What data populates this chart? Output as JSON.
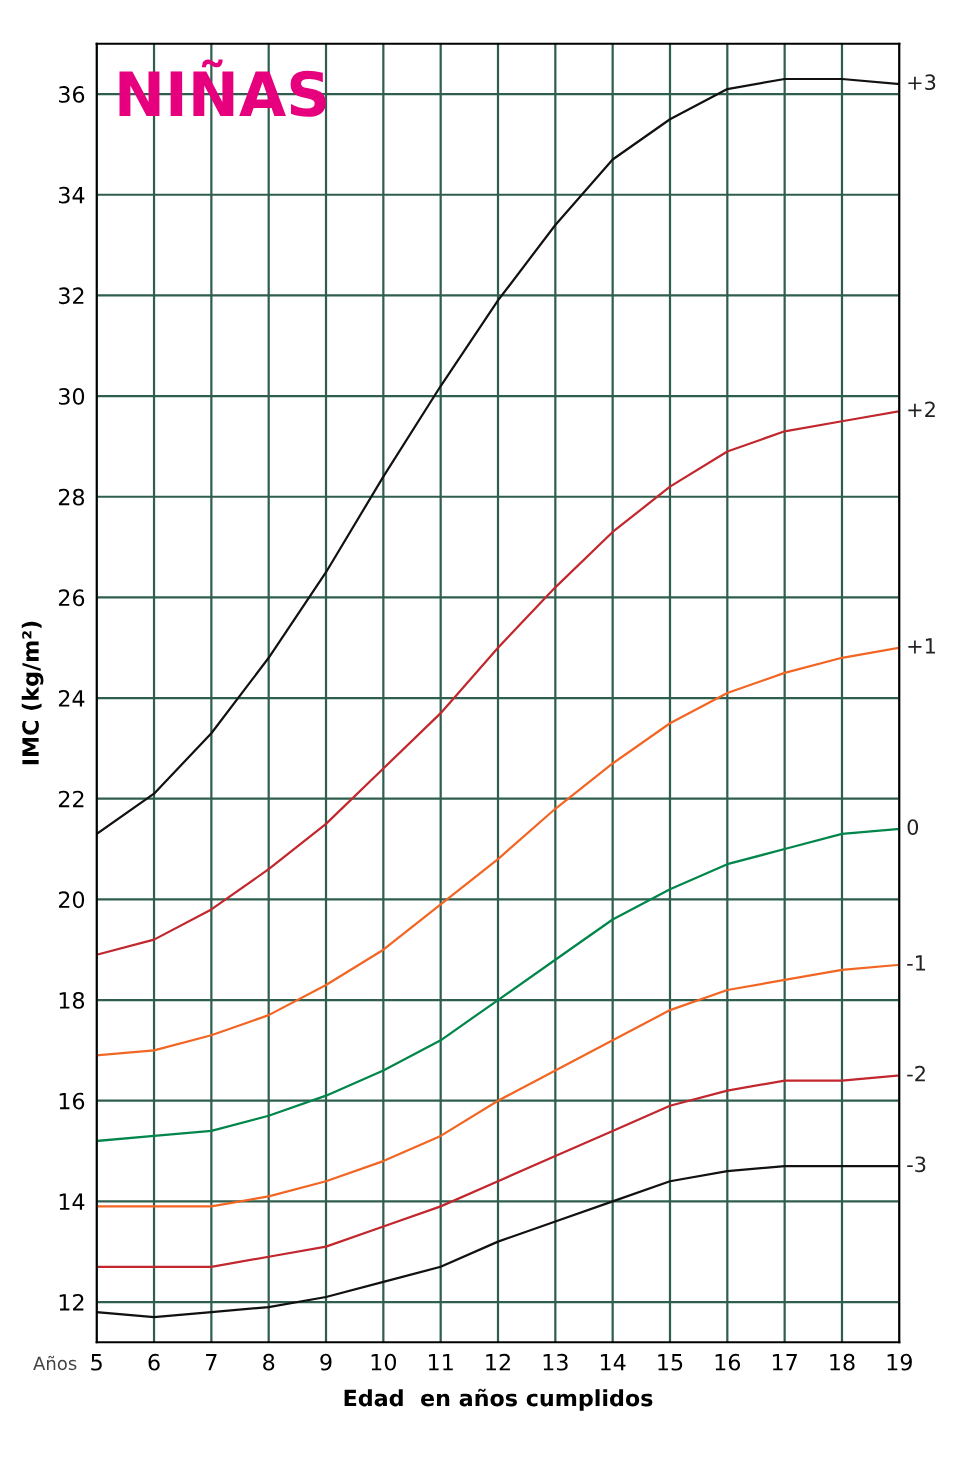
{
  "chart_data": {
    "type": "line",
    "title": "NIÑAS",
    "xlabel": "Edad  en años cumplidos",
    "ylabel": "IMC (kg/m²)",
    "annotations": [
      "Años"
    ],
    "x": [
      5,
      6,
      7,
      8,
      9,
      10,
      11,
      12,
      13,
      14,
      15,
      16,
      17,
      18,
      19
    ],
    "series": [
      {
        "name": "+3",
        "color": "#111111",
        "values": [
          21.3,
          22.1,
          23.3,
          24.8,
          26.5,
          28.4,
          30.2,
          31.9,
          33.4,
          34.7,
          35.5,
          36.1,
          36.3,
          36.3,
          36.2
        ]
      },
      {
        "name": "+2",
        "color": "#c1272d",
        "values": [
          18.9,
          19.2,
          19.8,
          20.6,
          21.5,
          22.6,
          23.7,
          25.0,
          26.2,
          27.3,
          28.2,
          28.9,
          29.3,
          29.5,
          29.7
        ]
      },
      {
        "name": "+1",
        "color": "#f26522",
        "values": [
          16.9,
          17.0,
          17.3,
          17.7,
          18.3,
          19.0,
          19.9,
          20.8,
          21.8,
          22.7,
          23.5,
          24.1,
          24.5,
          24.8,
          25.0
        ]
      },
      {
        "name": "0",
        "color": "#00854a",
        "values": [
          15.2,
          15.3,
          15.4,
          15.7,
          16.1,
          16.6,
          17.2,
          18.0,
          18.8,
          19.6,
          20.2,
          20.7,
          21.0,
          21.3,
          21.4
        ]
      },
      {
        "name": "-1",
        "color": "#f26522",
        "values": [
          13.9,
          13.9,
          13.9,
          14.1,
          14.4,
          14.8,
          15.3,
          16.0,
          16.6,
          17.2,
          17.8,
          18.2,
          18.4,
          18.6,
          18.7
        ]
      },
      {
        "name": "-2",
        "color": "#c1272d",
        "values": [
          12.7,
          12.7,
          12.7,
          12.9,
          13.1,
          13.5,
          13.9,
          14.4,
          14.9,
          15.4,
          15.9,
          16.2,
          16.4,
          16.4,
          16.5
        ]
      },
      {
        "name": "-3",
        "color": "#111111",
        "values": [
          11.8,
          11.7,
          11.8,
          11.9,
          12.1,
          12.4,
          12.7,
          13.2,
          13.6,
          14.0,
          14.4,
          14.6,
          14.7,
          14.7,
          14.7
        ]
      }
    ],
    "xlim": [
      5,
      19
    ],
    "xticks": [
      5,
      6,
      7,
      8,
      9,
      10,
      11,
      12,
      13,
      14,
      15,
      16,
      17,
      18,
      19
    ],
    "ylim": [
      11.2,
      37
    ],
    "yticks": [
      12,
      14,
      16,
      18,
      20,
      22,
      24,
      26,
      28,
      30,
      32,
      34,
      36
    ],
    "grid": true,
    "marker": "none",
    "line_style": "solid"
  }
}
